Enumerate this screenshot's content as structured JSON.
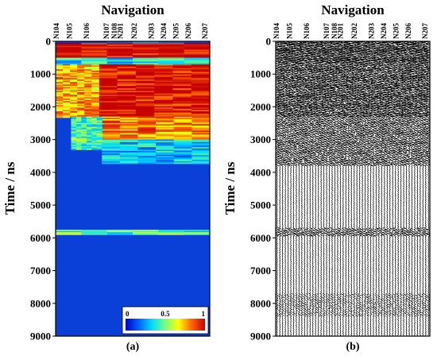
{
  "chart_data": [
    {
      "type": "heatmap",
      "panel_label": "(a)",
      "title": "Navigation",
      "ylabel": "Time / ns",
      "ylim": [
        0,
        9000
      ],
      "y_ticks": [
        0,
        1000,
        2000,
        3000,
        4000,
        5000,
        6000,
        7000,
        8000,
        9000
      ],
      "x_tick_labels": [
        "N104",
        "N105",
        "N106",
        "N107",
        "N108",
        "N201",
        "N202",
        "N203",
        "N204",
        "N205",
        "N206",
        "N207"
      ],
      "x_tick_positions": [
        0.0,
        0.085,
        0.195,
        0.325,
        0.375,
        0.415,
        0.505,
        0.615,
        0.695,
        0.775,
        0.855,
        0.965
      ],
      "colorbar": {
        "ticks": [
          0,
          0.5,
          1
        ],
        "colors": [
          "#0000c8",
          "#0064ff",
          "#00dcff",
          "#78ff78",
          "#ffff00",
          "#ff6400",
          "#c80000"
        ]
      },
      "background_color": "#0a3fd8",
      "intensity_bands": [
        {
          "t0": 0,
          "t1": 60,
          "x0": 0,
          "x1": 1,
          "level": 0.1
        },
        {
          "t0": 60,
          "t1": 500,
          "x0": 0,
          "x1": 1,
          "level": 1.0
        },
        {
          "t0": 500,
          "t1": 700,
          "x0": 0,
          "x1": 1,
          "level": 0.35
        },
        {
          "t0": 700,
          "t1": 2300,
          "x0": 0.28,
          "x1": 1,
          "level": 0.97
        },
        {
          "t0": 700,
          "t1": 2300,
          "x0": 0,
          "x1": 0.28,
          "level": 0.75
        },
        {
          "t0": 2300,
          "t1": 3000,
          "x0": 0.3,
          "x1": 1,
          "level": 0.8
        },
        {
          "t0": 2300,
          "t1": 3300,
          "x0": 0.1,
          "x1": 0.3,
          "level": 0.45
        },
        {
          "t0": 3000,
          "t1": 3700,
          "x0": 0.3,
          "x1": 1,
          "level": 0.3
        },
        {
          "t0": 5750,
          "t1": 5900,
          "x0": 0,
          "x1": 1,
          "level": 0.45
        }
      ]
    },
    {
      "type": "wiggle",
      "panel_label": "(b)",
      "title": "Navigation",
      "ylabel": "Time / ns",
      "ylim": [
        0,
        9000
      ],
      "y_ticks": [
        0,
        1000,
        2000,
        3000,
        4000,
        5000,
        6000,
        7000,
        8000,
        9000
      ],
      "x_tick_labels": [
        "N104",
        "N105",
        "N106",
        "N107",
        "N108",
        "N201",
        "N202",
        "N203",
        "N204",
        "N205",
        "N206",
        "N207"
      ],
      "x_tick_positions": [
        0.0,
        0.085,
        0.195,
        0.325,
        0.375,
        0.415,
        0.505,
        0.615,
        0.695,
        0.775,
        0.855,
        0.965
      ],
      "trace_count": 56,
      "trace_color": "#000000",
      "amplitude_zones": [
        {
          "t0": 0,
          "t1": 700,
          "level": 1.0
        },
        {
          "t0": 700,
          "t1": 2300,
          "level": 0.85
        },
        {
          "t0": 2300,
          "t1": 3800,
          "level": 0.55
        },
        {
          "t0": 3800,
          "t1": 9000,
          "level": 0.12
        },
        {
          "t0": 5700,
          "t1": 5950,
          "level": 0.5
        },
        {
          "t0": 7700,
          "t1": 8400,
          "level": 0.3
        }
      ]
    }
  ]
}
